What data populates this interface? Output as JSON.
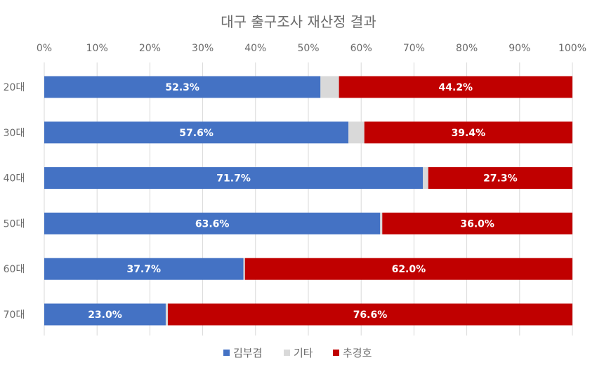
{
  "chart_data": {
    "type": "bar",
    "orientation": "horizontal",
    "stacked": true,
    "percent_axis": true,
    "title": "대구 출구조사 재산정 결과",
    "categories": [
      "20대",
      "30대",
      "40대",
      "50대",
      "60대",
      "70대"
    ],
    "x_ticks": [
      "0%",
      "10%",
      "20%",
      "30%",
      "40%",
      "50%",
      "60%",
      "70%",
      "80%",
      "90%",
      "100%"
    ],
    "xlim": [
      0,
      100
    ],
    "grid": true,
    "legend_position": "bottom",
    "series": [
      {
        "name": "김부겸",
        "color": "#4472C4",
        "values": [
          52.3,
          57.6,
          71.7,
          63.6,
          37.7,
          23.0
        ],
        "labels": [
          "52.3%",
          "57.6%",
          "71.7%",
          "63.6%",
          "37.7%",
          "23.0%"
        ]
      },
      {
        "name": "기타",
        "color": "#D9D9D9",
        "values": [
          3.5,
          3.0,
          1.0,
          0.4,
          0.3,
          0.4
        ],
        "labels": [
          "",
          "",
          "",
          "",
          "",
          ""
        ]
      },
      {
        "name": "추경호",
        "color": "#C00000",
        "values": [
          44.2,
          39.4,
          27.3,
          36.0,
          62.0,
          76.6
        ],
        "labels": [
          "44.2%",
          "39.4%",
          "27.3%",
          "36.0%",
          "62.0%",
          "76.6%"
        ]
      }
    ]
  }
}
